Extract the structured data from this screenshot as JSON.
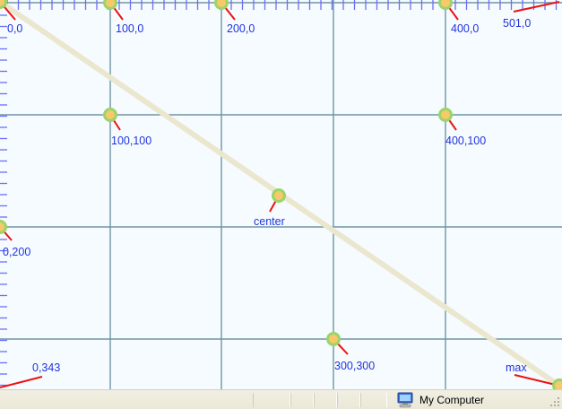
{
  "canvas": {
    "points": [
      {
        "id": "p-0-0",
        "label": "0,0"
      },
      {
        "id": "p-100-0",
        "label": "100,0"
      },
      {
        "id": "p-200-0",
        "label": "200,0"
      },
      {
        "id": "p-400-0",
        "label": "400,0"
      },
      {
        "id": "p-501-0",
        "label": "501,0"
      },
      {
        "id": "p-100-100",
        "label": "100,100"
      },
      {
        "id": "p-400-100",
        "label": "400,100"
      },
      {
        "id": "p-center",
        "label": "center"
      },
      {
        "id": "p-0-200",
        "label": "0,200"
      },
      {
        "id": "p-300-300",
        "label": "300,300"
      },
      {
        "id": "p-0-343",
        "label": "0,343"
      },
      {
        "id": "p-max",
        "label": "max"
      }
    ]
  },
  "statusbar": {
    "zone_label": "My Computer",
    "zone_icon": "computer-icon"
  },
  "colors": {
    "background": "#f5fbfe",
    "grid": "#6f95a5",
    "ruler": "#6b6ff5",
    "label": "#2233dd",
    "leader": "#ee1111",
    "marker_ring": "#9bd46a",
    "marker_fill": "#f6c96a",
    "diagonal": "#ebe7cf"
  }
}
